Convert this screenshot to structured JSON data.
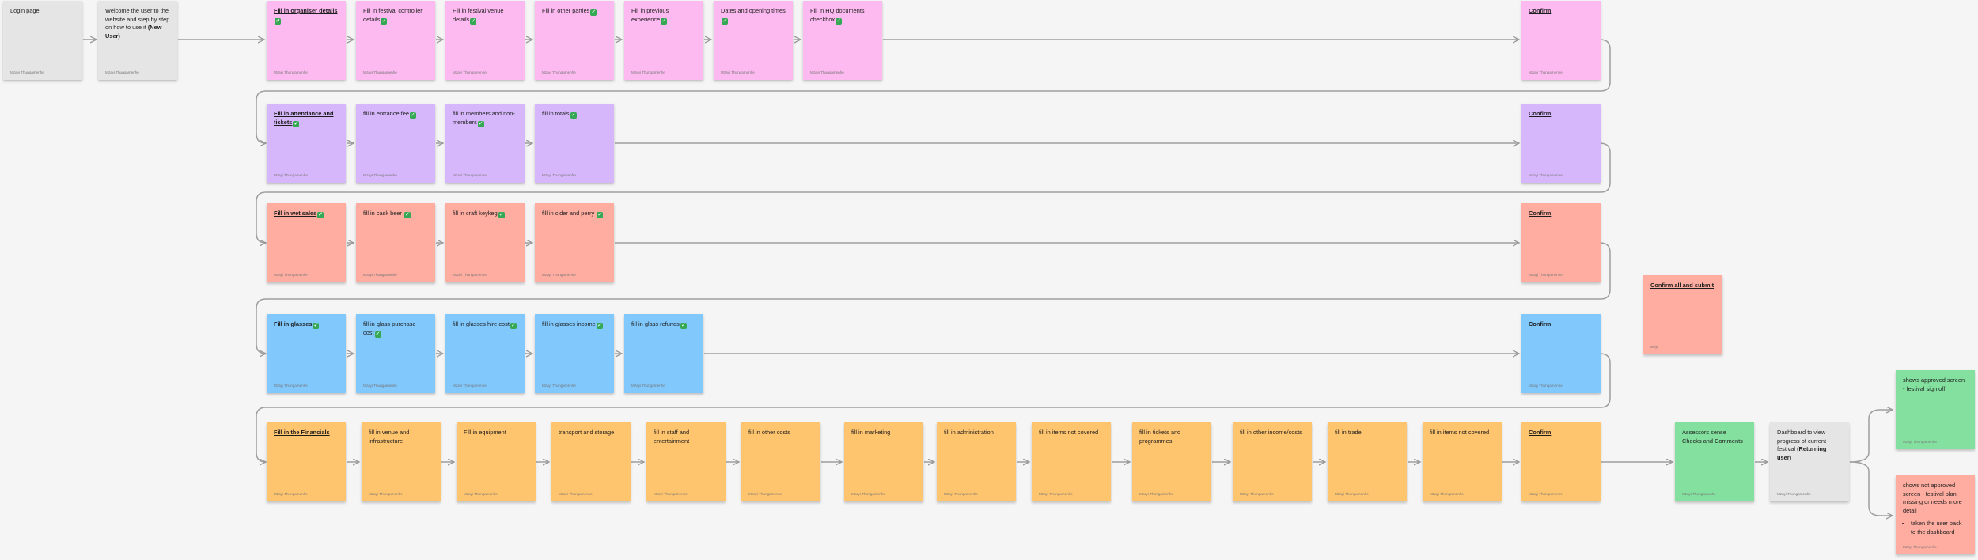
{
  "notes": [
    {
      "id": "n0",
      "text": "Login page",
      "color": "grey",
      "author": "Mzayi Thungamenhe"
    },
    {
      "id": "n1",
      "text": "Welcome the user to the website and step by step on how to use it ",
      "bold_suffix": "(New User)",
      "color": "grey",
      "author": "Mzayi Thungamenhe"
    },
    {
      "id": "n2",
      "text": "Fill in organiser details",
      "heading": true,
      "tick": true,
      "color": "pink",
      "author": "Mzayi Thungamenhe"
    },
    {
      "id": "n3",
      "text": "Fill in festival controller details",
      "tick": true,
      "color": "pink",
      "author": "Mzayi Thungamenhe"
    },
    {
      "id": "n4",
      "text": "Fill in festival venue details",
      "tick": true,
      "color": "pink",
      "author": "Mzayi Thungamenhe"
    },
    {
      "id": "n5",
      "text": "Fill in other parties",
      "tick": true,
      "color": "pink",
      "author": "Mzayi Thungamenhe"
    },
    {
      "id": "n6",
      "text": "Fill in previous experience",
      "tick": true,
      "color": "pink",
      "author": "Mzayi Thungamenhe"
    },
    {
      "id": "n7",
      "text": "Dates and opening times",
      "tick": true,
      "color": "pink",
      "author": "Mzayi Thungamenhe"
    },
    {
      "id": "n8",
      "text": "Fill in HQ documents checkbox",
      "tick": true,
      "color": "pink",
      "author": "Mzayi Thungamenhe"
    },
    {
      "id": "n9",
      "text": "Confirm",
      "heading": true,
      "color": "pink",
      "author": "Mzayi Thungamenhe"
    },
    {
      "id": "n10",
      "text": "Fill in attendance and tickets",
      "heading": true,
      "tick": true,
      "color": "purple",
      "author": "Mzayi Thungamenhe"
    },
    {
      "id": "n11",
      "text": "fill in entrance fee",
      "tick": true,
      "color": "purple",
      "author": "Mzayi Thungamenhe"
    },
    {
      "id": "n12",
      "text": "fill in members and non-members",
      "tick": true,
      "color": "purple",
      "author": "Mzayi Thungamenhe"
    },
    {
      "id": "n13",
      "text": "fill in totals",
      "tick": true,
      "color": "purple",
      "author": "Mzayi Thungamenhe"
    },
    {
      "id": "n14",
      "text": "Confirm",
      "heading": true,
      "color": "purple",
      "author": "Mzayi Thungamenhe"
    },
    {
      "id": "n15",
      "text": "Fill in wet sales",
      "heading": true,
      "tick": true,
      "color": "salmon",
      "author": "Mzayi Thungamenhe"
    },
    {
      "id": "n16",
      "text": "fill in cask beer ",
      "tick": true,
      "color": "salmon",
      "author": "Mzayi Thungamenhe"
    },
    {
      "id": "n17",
      "text": "fill in craft keykeg",
      "tick": true,
      "color": "salmon",
      "author": "Mzayi Thungamenhe"
    },
    {
      "id": "n18",
      "text": "fill in cider and perry ",
      "tick": true,
      "color": "salmon",
      "author": "Mzayi Thungamenhe"
    },
    {
      "id": "n19",
      "text": "Confirm",
      "heading": true,
      "color": "salmon",
      "author": "Mzayi Thungamenhe"
    },
    {
      "id": "n20",
      "text": "Confirm all and submit",
      "heading": true,
      "color": "salmon",
      "author": "Mzyi"
    },
    {
      "id": "n21",
      "text": "Fill in glasses",
      "heading": true,
      "tick": true,
      "color": "blue",
      "author": "Mzayi Thungamenhe"
    },
    {
      "id": "n22",
      "text": "fill in glass purchase cost",
      "tick": true,
      "color": "blue",
      "author": "Mzayi Thungamenhe"
    },
    {
      "id": "n23",
      "text": "fill in glasses hire cost",
      "tick": true,
      "color": "blue",
      "author": "Mzayi Thungamenhe"
    },
    {
      "id": "n24",
      "text": "fill in glasses income",
      "tick": true,
      "color": "blue",
      "author": "Mzayi Thungamenhe"
    },
    {
      "id": "n25",
      "text": "fill in glass refunds",
      "tick": true,
      "color": "blue",
      "author": "Mzayi Thungamenhe"
    },
    {
      "id": "n26",
      "text": "Confirm",
      "heading": true,
      "color": "blue",
      "author": "Mzayi Thungamenhe"
    },
    {
      "id": "n27",
      "text": "Fill in the Financials",
      "heading": true,
      "color": "orange",
      "author": "Mzayi Thungamenhe"
    },
    {
      "id": "n28",
      "text": "fill in venue and infrastructure",
      "color": "orange",
      "author": "Mzayi Thungamenhe"
    },
    {
      "id": "n29",
      "text": "Fill in equipment",
      "color": "orange",
      "author": "Mzayi Thungamenhe"
    },
    {
      "id": "n30",
      "text": "transport and storage",
      "color": "orange",
      "author": "Mzayi Thungamenhe"
    },
    {
      "id": "n31",
      "text": "fill in staff and entertainment",
      "color": "orange",
      "author": "Mzayi Thungamenhe"
    },
    {
      "id": "n32",
      "text": "fill in other costs",
      "color": "orange",
      "author": "Mzayi Thungamenhe"
    },
    {
      "id": "n33",
      "text": "fill in marketing",
      "color": "orange",
      "author": "Mzayi Thungamenhe"
    },
    {
      "id": "n34",
      "text": "fill in administration",
      "color": "orange",
      "author": "Mzayi Thungamenhe"
    },
    {
      "id": "n35",
      "text": "fill in items not covered",
      "color": "orange",
      "author": "Mzayi Thungamenhe"
    },
    {
      "id": "n36",
      "text": "fill in tickets and programmes",
      "color": "orange",
      "author": "Mzayi Thungamenhe"
    },
    {
      "id": "n37",
      "text": "fill in other income/costs",
      "color": "orange",
      "author": "Mzayi Thungamenhe"
    },
    {
      "id": "n38",
      "text": "fill in trade",
      "color": "orange",
      "author": "Mzayi Thungamenhe"
    },
    {
      "id": "n39",
      "text": "fill in items not covered",
      "color": "orange",
      "author": "Mzayi Thungamenhe"
    },
    {
      "id": "n40",
      "text": "Confirm",
      "heading": true,
      "color": "orange",
      "author": "Mzayi Thungamenhe"
    },
    {
      "id": "n41",
      "text": "Assessors sense Checks and Comments",
      "color": "green",
      "author": "Mzayi Thungamenhe"
    },
    {
      "id": "n42",
      "text": "Dashboard to view progress of current festival ",
      "bold_suffix": "(Returning user)",
      "color": "grey",
      "author": "Mzayi Thungamenhe"
    },
    {
      "id": "n43",
      "text": "shows approved screen - festival sign off",
      "color": "green",
      "author": "Mzayi Thungamenhe"
    },
    {
      "id": "n44",
      "text": "shows not approved screen - festival plan missing or needs more detail",
      "bullet": "taken the user back to the dashboard",
      "color": "salmon",
      "author": "Mzayi Thungamenhe"
    }
  ]
}
